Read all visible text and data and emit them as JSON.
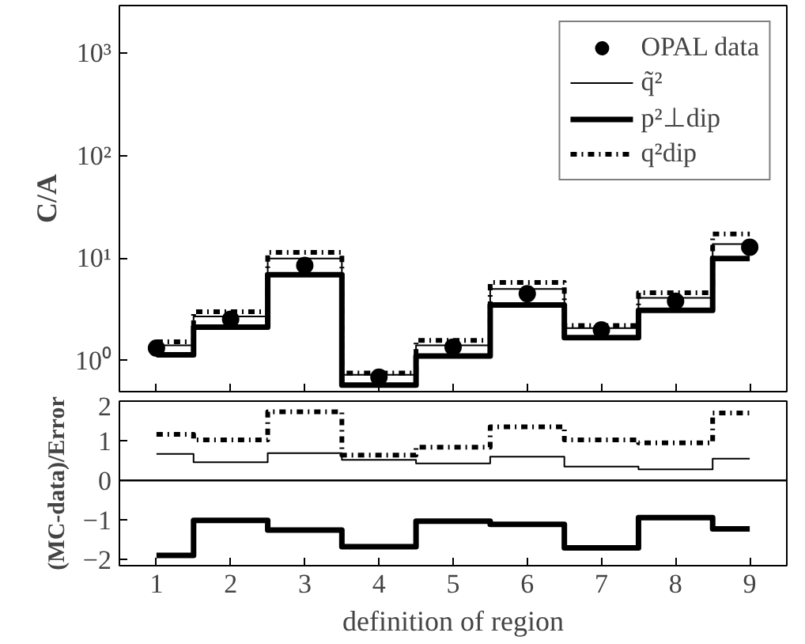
{
  "chart_data": [
    {
      "type": "step",
      "ylabel": "C/A",
      "log": "y",
      "legend": "top right",
      "tick_labels": "y",
      "x": [
        1,
        2,
        3,
        4,
        5,
        6,
        7,
        8,
        9
      ],
      "xlim": [
        0.5,
        9.5
      ],
      "xticks": [
        1,
        2,
        3,
        4,
        5,
        6,
        7,
        8,
        9
      ],
      "ylim": [
        0.5,
        2900
      ],
      "yticks": [
        {
          "value": 1,
          "label": "10⁰"
        },
        {
          "value": 10,
          "label": "10¹"
        },
        {
          "value": 100,
          "label": "10²"
        },
        {
          "value": 1000,
          "label": "10³"
        }
      ],
      "series": [
        {
          "name": "OPAL data",
          "type": "scatter",
          "marker": "circle",
          "color": "#000000",
          "values": [
            1.33,
            2.54,
            8.5,
            0.69,
            1.36,
            4.5,
            2.0,
            3.8,
            12.8
          ]
        },
        {
          "name": "q̃²",
          "color": "#000000",
          "line_style": "solid",
          "values": [
            1.41,
            2.7,
            9.9,
            0.73,
            1.41,
            5.0,
            2.08,
            4.1,
            13.7
          ]
        },
        {
          "name": "p²⊥dip",
          "color": "#000000",
          "line_style": "solid",
          "values": [
            1.14,
            2.13,
            6.9,
            0.58,
            1.11,
            3.5,
            1.68,
            3.1,
            9.9
          ]
        },
        {
          "name": "q²dip",
          "color": "#000000",
          "line_style": "dotted",
          "values": [
            1.53,
            3.0,
            11.4,
            0.76,
            1.58,
            5.8,
            2.2,
            4.6,
            17.2
          ]
        }
      ]
    },
    {
      "type": "step",
      "ylabel": "(MC-data)/Error",
      "xlabel": "definition of region",
      "x": [
        1,
        2,
        3,
        4,
        5,
        6,
        7,
        8,
        9
      ],
      "xlim": [
        0.5,
        9.5
      ],
      "xticks": [
        1,
        2,
        3,
        4,
        5,
        6,
        7,
        8,
        9
      ],
      "ylim": [
        -2.15,
        2
      ],
      "yticks": [
        {
          "value": -2,
          "label": "−2"
        },
        {
          "value": -1,
          "label": "−1"
        },
        0,
        1,
        2
      ],
      "ref_lines": [
        {
          "axis": "y",
          "value": 0,
          "color": "#000000"
        }
      ],
      "series": [
        {
          "color": "#000000",
          "line_style": "solid",
          "values": [
            0.67,
            0.46,
            0.69,
            0.52,
            0.43,
            0.6,
            0.35,
            0.28,
            0.55
          ]
        },
        {
          "color": "#000000",
          "line_style": "solid",
          "values": [
            -1.89,
            -1.01,
            -1.25,
            -1.67,
            -1.03,
            -1.11,
            -1.7,
            -0.94,
            -1.22
          ]
        },
        {
          "color": "#000000",
          "line_style": "dotted",
          "values": [
            1.16,
            1.02,
            1.73,
            0.64,
            0.84,
            1.35,
            1.02,
            0.95,
            1.7
          ]
        }
      ]
    }
  ]
}
